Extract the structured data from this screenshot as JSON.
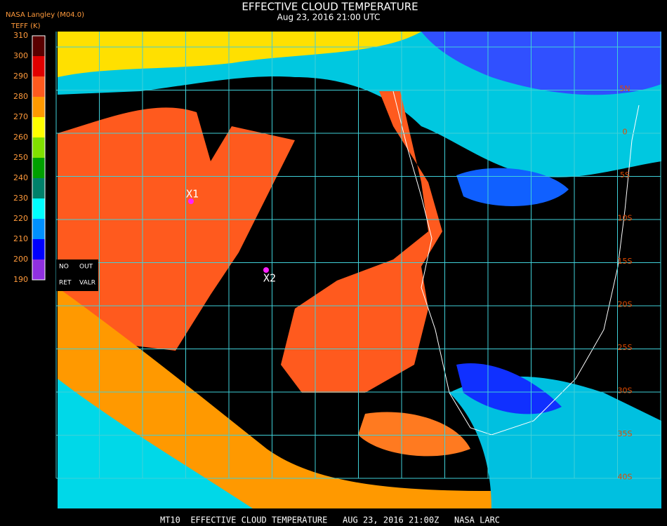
{
  "header": {
    "title": "EFFECTIVE CLOUD TEMPERATURE",
    "subtitle": "Aug 23, 2016 21:00 UTC",
    "source": "NASA Langley (M04.0)",
    "unit": "TEFF (K)"
  },
  "colorbar": {
    "labels": [
      310,
      300,
      290,
      280,
      270,
      260,
      250,
      240,
      230,
      220,
      210,
      200,
      190
    ],
    "colors": [
      "#5a0000",
      "#e00000",
      "#ff5a1e",
      "#ff9900",
      "#ffff00",
      "#80e000",
      "#00a000",
      "#00806a",
      "#00ffff",
      "#0090ff",
      "#0000ff",
      "#9030e0"
    ]
  },
  "notes": [
    "NO",
    "OUT",
    "RET",
    "VALR"
  ],
  "markers": [
    "X1",
    "X2"
  ],
  "lat_labels": [
    "5N",
    "0",
    "5S",
    "10S",
    "15S",
    "20S",
    "25S",
    "30S",
    "35S",
    "40S"
  ],
  "footer": "MT10  EFFECTIVE CLOUD TEMPERATURE   AUG 23, 2016 21:00Z   NASA LARC"
}
